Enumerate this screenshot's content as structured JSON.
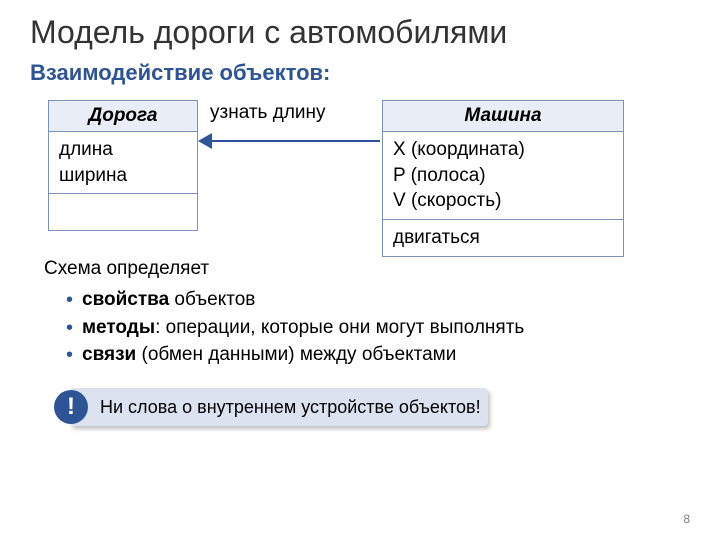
{
  "title": "Модель дороги с автомобилями",
  "subtitle": "Взаимодействие объектов:",
  "colors": {
    "accent": "#2f5496",
    "table_header_bg": "#e9edf6",
    "table_border": "#7d92b8",
    "arrow": "#2f5496",
    "callout_bg": "#dce2f0",
    "callout_badge_bg": "#2f5496",
    "text": "#000000",
    "page_num": "#7f7f7f",
    "background": "#ffffff"
  },
  "tables": {
    "road": {
      "name": "Дорога",
      "attrs_line1": "длина",
      "attrs_line2": "ширина"
    },
    "car": {
      "name": "Машина",
      "attrs_line1": "X (координата)",
      "attrs_line2": "P (полоса)",
      "attrs_line3": "V (скорость)",
      "methods": "двигаться"
    }
  },
  "arrow_label": "узнать длину",
  "schema": {
    "lead": "Схема определяет",
    "b1_kw": "свойства",
    "b1_rest": " объектов",
    "b2_kw": "методы",
    "b2_rest": ": операции, которые они могут выполнять",
    "b3_kw": "связи",
    "b3_rest": " (обмен данными) между объектами"
  },
  "callout": {
    "badge": "!",
    "text": "Ни слова о внутреннем устройстве объектов!"
  },
  "page_number": "8",
  "fonts": {
    "title_pt": 32,
    "subtitle_pt": 22,
    "body_pt": 19,
    "callout_pt": 18,
    "page_num_pt": 12
  }
}
